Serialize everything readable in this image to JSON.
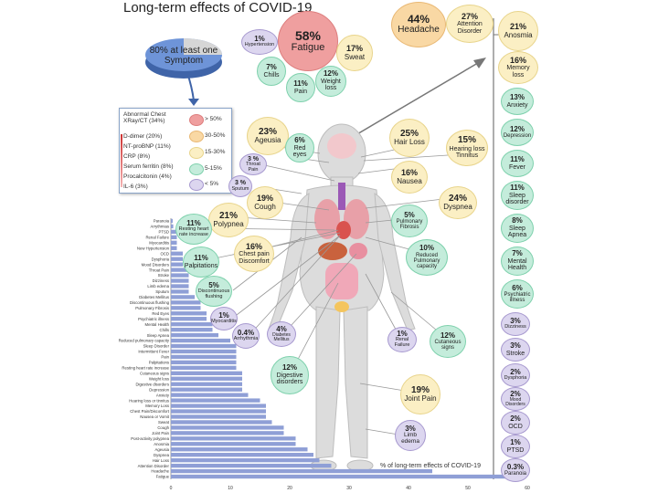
{
  "title": "Long-term effects of COVID-19",
  "pie": {
    "label": "80% at least one Symptom",
    "value": 80
  },
  "legend": {
    "items": [
      "Abnormal Chest XRay/CT (34%)",
      "D-dimer (20%)",
      "NT-proBNP (11%)",
      "CRP (8%)",
      "Serum ferritin (8%)",
      "Procalcitonin (4%)",
      "IL-6 (3%)"
    ],
    "ranges": [
      "> 50%",
      "30-50%",
      "15-30%",
      "5-15%",
      "< 5%"
    ],
    "colors": [
      "#ef9f9f",
      "#f9d8a4",
      "#fbefc4",
      "#c4ecdb",
      "#dcd6ef"
    ]
  },
  "bubbles": {
    "fatigue": {
      "pct": "58%",
      "label": "Fatigue"
    },
    "hypertension": {
      "pct": "1%",
      "label": "Hypertension"
    },
    "sweat": {
      "pct": "17%",
      "label": "Sweat"
    },
    "chills": {
      "pct": "7%",
      "label": "Chills"
    },
    "pain": {
      "pct": "11%",
      "label": "Pain"
    },
    "weight": {
      "pct": "12%",
      "label": "Weight loss"
    },
    "headache": {
      "pct": "44%",
      "label": "Headache"
    },
    "attention": {
      "pct": "27%",
      "label": "Attention Disorder"
    },
    "anosmia": {
      "pct": "21%",
      "label": "Anosmia"
    },
    "memory": {
      "pct": "16%",
      "label": "Memory loss"
    },
    "anxiety": {
      "pct": "13%",
      "label": "Anxiety"
    },
    "depression": {
      "pct": "12%",
      "label": "Depression"
    },
    "fever": {
      "pct": "11%",
      "label": "Fever"
    },
    "sleepdis": {
      "pct": "11%",
      "label": "Sleep disorder"
    },
    "apnea": {
      "pct": "8%",
      "label": "Sleep Apnea"
    },
    "mental": {
      "pct": "7%",
      "label": "Mental Health"
    },
    "psych": {
      "pct": "6%",
      "label": "Psychiatric illness"
    },
    "dizziness": {
      "pct": "3%",
      "label": "Dizziness"
    },
    "stroke": {
      "pct": "3%",
      "label": "Stroke"
    },
    "dysphoria": {
      "pct": "2%",
      "label": "Dysphoria"
    },
    "mood": {
      "pct": "2%",
      "label": "Mood Disorders"
    },
    "ocd": {
      "pct": "2%",
      "label": "OCD"
    },
    "ptsd": {
      "pct": "1%",
      "label": "PTSD"
    },
    "paranoia": {
      "pct": "0.3%",
      "label": "Paranoia"
    },
    "ageusia": {
      "pct": "23%",
      "label": "Ageusia"
    },
    "redeyes": {
      "pct": "6%",
      "label": "Red eyes"
    },
    "hairloss": {
      "pct": "25%",
      "label": "Hair Loss"
    },
    "hearing": {
      "pct": "15%",
      "label": "Hearing loss Tinnitus"
    },
    "throat": {
      "pct": "3 %",
      "label": "Throat Pain"
    },
    "nausea": {
      "pct": "16%",
      "label": "Nausea"
    },
    "sputum": {
      "pct": "3 %",
      "label": "Sputum"
    },
    "cough": {
      "pct": "19%",
      "label": "Cough"
    },
    "dyspnea": {
      "pct": "24%",
      "label": "Dyspnea"
    },
    "polypnea": {
      "pct": "21%",
      "label": "Polypnea"
    },
    "restinghr": {
      "pct": "11%",
      "label": "Resting heart rate increase"
    },
    "chestpain": {
      "pct": "16%",
      "label": "Chest pain Discomfort"
    },
    "palpitations": {
      "pct": "11%",
      "label": "Palpitations"
    },
    "fibrosis": {
      "pct": "5%",
      "label": "Pulmonary Fibrosis"
    },
    "pulmcap": {
      "pct": "10%",
      "label": "Reduced Pulmonary capacity"
    },
    "flushing": {
      "pct": "5%",
      "label": "Discontinuous flushing"
    },
    "myocarditis": {
      "pct": "1%",
      "label": "Myocarditis"
    },
    "arrhythmia": {
      "pct": "0.4%",
      "label": "Arrhythmia"
    },
    "diabetes": {
      "pct": "4%",
      "label": "Diabetes Mellitus"
    },
    "renal": {
      "pct": "1%",
      "label": "Renal Failure"
    },
    "cutaneous": {
      "pct": "12%",
      "label": "Cutaneous signs"
    },
    "digestive": {
      "pct": "12%",
      "label": "Digestive disorders"
    },
    "joint": {
      "pct": "19%",
      "label": "Joint Pain"
    },
    "limb": {
      "pct": "3%",
      "label": "Limb edema"
    }
  },
  "colors": {
    "bar": "#8f9fd6",
    "body": "#d9d9d9",
    "organ_red": "#d9534f"
  },
  "chart_data": {
    "type": "bar",
    "orientation": "horizontal",
    "xlabel": "% of long-term effects of COVID-19",
    "xlim": [
      0,
      60
    ],
    "xticks": [
      "0",
      "10",
      "20",
      "30",
      "40",
      "50",
      "60"
    ],
    "categories": [
      "Paranoia",
      "Arrythmias",
      "PTSD",
      "Renal Failure",
      "Myocarditis",
      "New Hypertension",
      "OCD",
      "Dysphoria",
      "Mood Disorders",
      "Throat Pain",
      "Stroke",
      "Dizziness",
      "Limb edema",
      "Sputum",
      "Diabetes Mellitus",
      "Discontinuous flushing",
      "Pulmonary Fibrosis",
      "Red Eyes",
      "Psychiatric illness",
      "Mental Health",
      "Chills",
      "Sleep Apnea",
      "Reduced pulmonary capacity",
      "Sleep Disorder",
      "Intermittent Fever",
      "Pain",
      "Palpitations",
      "Resting heart rate increase",
      "Cutaneous signs",
      "Weight loss",
      "Digestive disorders",
      "Depression",
      "Anxiety",
      "Hearing loss or tinnitus",
      "Memory Loss",
      "Chest Pain/Discomfort",
      "Nausea or Vomit",
      "Sweat",
      "Cough",
      "Joint Pain",
      "Post-activity polypnea",
      "Anosmia",
      "Ageusia",
      "Dyspnea",
      "Hair Loss",
      "Attention Disorder",
      "Headache",
      "Fatigue"
    ],
    "values": [
      0.3,
      0.4,
      1,
      1,
      1,
      1,
      2,
      2,
      2,
      3,
      3,
      3,
      3,
      3,
      4,
      5,
      5,
      6,
      6,
      7,
      7,
      8,
      10,
      11,
      11,
      11,
      11,
      11,
      12,
      12,
      12,
      12,
      13,
      15,
      16,
      16,
      16,
      17,
      19,
      19,
      21,
      21,
      23,
      24,
      25,
      27,
      44,
      58
    ]
  }
}
